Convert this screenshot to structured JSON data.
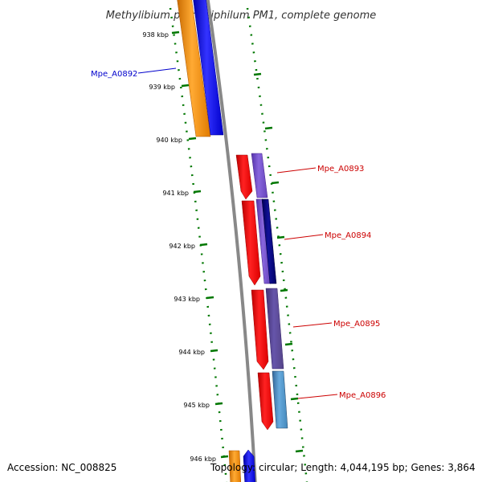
{
  "title": "Methylibium petroleiphilum PM1, complete genome",
  "footer": {
    "accession": "Accession: NC_008825",
    "summary": "Topology: circular; Length: 4,044,195 bp; Genes: 3,864"
  },
  "ticks": [
    "938 kbp",
    "939 kbp",
    "940 kbp",
    "941 kbp",
    "942 kbp",
    "943 kbp",
    "944 kbp",
    "945 kbp",
    "946 kbp"
  ],
  "genes": [
    {
      "label": "Mpe_A0892",
      "color": "#0000cc"
    },
    {
      "label": "Mpe_A0893",
      "color": "#cc0000"
    },
    {
      "label": "Mpe_A0894",
      "color": "#cc0000"
    },
    {
      "label": "Mpe_A0895",
      "color": "#cc0000"
    },
    {
      "label": "Mpe_A0896",
      "color": "#cc0000"
    }
  ],
  "colors": {
    "backbone": "#888888",
    "tick": "#007700",
    "cds_forward": "#ff0000",
    "cds_reverse": "#0000ff",
    "gene_orange": "#ff9900",
    "cog_purple": "#7755cc",
    "cog_navy": "#000077",
    "cog_slate": "#554488",
    "cog_steel": "#4488bb"
  }
}
